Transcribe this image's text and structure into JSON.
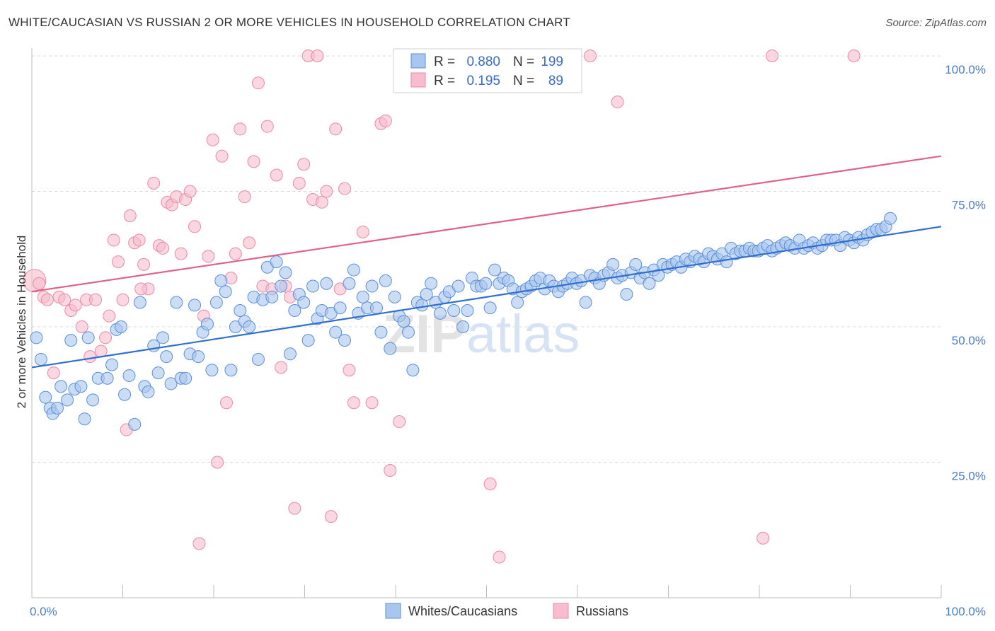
{
  "title": "WHITE/CAUCASIAN VS RUSSIAN 2 OR MORE VEHICLES IN HOUSEHOLD CORRELATION CHART",
  "source": "Source: ZipAtlas.com",
  "watermark": "ZIPatlas",
  "colors": {
    "blue_fill": "#a9c6ef",
    "blue_stroke": "#5b8fd9",
    "blue_line": "#2f6fd0",
    "pink_fill": "#f7bccd",
    "pink_stroke": "#e88aa8",
    "pink_line": "#e0628b",
    "grid": "#d8d8d8",
    "tick_text": "#4a7ccb"
  },
  "legend": {
    "r_label": "R =",
    "n_label": "N =",
    "rows": [
      {
        "series": "Whites/Caucasians",
        "r": "0.880",
        "n": "199"
      },
      {
        "series": "Russians",
        "r": "0.195",
        "n": "89"
      }
    ]
  },
  "bottom_legend": [
    "Whites/Caucasians",
    "Russians"
  ],
  "chart_data": {
    "type": "scatter",
    "title": "WHITE/CAUCASIAN VS RUSSIAN 2 OR MORE VEHICLES IN HOUSEHOLD CORRELATION CHART",
    "xlabel": "",
    "ylabel": "2 or more Vehicles in Household",
    "xlim": [
      0,
      100
    ],
    "ylim": [
      0,
      100
    ],
    "x_tick_labels": [
      "0.0%",
      "100.0%"
    ],
    "y_tick_labels": [
      "25.0%",
      "50.0%",
      "75.0%",
      "100.0%"
    ],
    "y_ticks": [
      25,
      50,
      75,
      100
    ],
    "grid": true,
    "legend_position": "top-center",
    "series": [
      {
        "name": "Whites/Caucasians",
        "trend": {
          "x": [
            0,
            100
          ],
          "y": [
            42.5,
            68.5
          ]
        },
        "points": [
          [
            0.5,
            48
          ],
          [
            1,
            44
          ],
          [
            1.5,
            37
          ],
          [
            2,
            35
          ],
          [
            2.3,
            34
          ],
          [
            2.8,
            35
          ],
          [
            3.2,
            39
          ],
          [
            3.9,
            36.5
          ],
          [
            4.3,
            47.5
          ],
          [
            4.7,
            38.5
          ],
          [
            5.4,
            39
          ],
          [
            5.8,
            33
          ],
          [
            6.2,
            48
          ],
          [
            6.7,
            36.5
          ],
          [
            7.3,
            40.5
          ],
          [
            8.3,
            40.5
          ],
          [
            8.8,
            43
          ],
          [
            9.3,
            49.5
          ],
          [
            9.8,
            50
          ],
          [
            10.2,
            37.5
          ],
          [
            10.7,
            41
          ],
          [
            11.3,
            32
          ],
          [
            11.9,
            54.5
          ],
          [
            12.4,
            39
          ],
          [
            12.8,
            38
          ],
          [
            13.4,
            46.5
          ],
          [
            13.9,
            41.5
          ],
          [
            14.4,
            48
          ],
          [
            14.8,
            44.5
          ],
          [
            15.3,
            39.5
          ],
          [
            15.9,
            54.5
          ],
          [
            16.4,
            40.5
          ],
          [
            16.9,
            40.5
          ],
          [
            17.4,
            45
          ],
          [
            17.9,
            54
          ],
          [
            18.3,
            44.5
          ],
          [
            18.8,
            49
          ],
          [
            19.3,
            50.5
          ],
          [
            19.8,
            42
          ],
          [
            20.3,
            54.5
          ],
          [
            20.8,
            58.5
          ],
          [
            21.3,
            56.5
          ],
          [
            21.9,
            42
          ],
          [
            22.4,
            50
          ],
          [
            22.9,
            53
          ],
          [
            23.4,
            51
          ],
          [
            23.9,
            50
          ],
          [
            24.4,
            55.5
          ],
          [
            24.9,
            44
          ],
          [
            25.4,
            55
          ],
          [
            25.9,
            61
          ],
          [
            26.4,
            55.5
          ],
          [
            26.9,
            62
          ],
          [
            27.4,
            57.5
          ],
          [
            27.9,
            60
          ],
          [
            28.4,
            45
          ],
          [
            28.9,
            53
          ],
          [
            29.4,
            56
          ],
          [
            29.9,
            54.5
          ],
          [
            30.4,
            47.5
          ],
          [
            30.9,
            57.5
          ],
          [
            31.4,
            51.5
          ],
          [
            31.9,
            53
          ],
          [
            32.4,
            58
          ],
          [
            32.9,
            52.5
          ],
          [
            33.4,
            49
          ],
          [
            33.9,
            53.5
          ],
          [
            34.4,
            47.5
          ],
          [
            34.9,
            58
          ],
          [
            35.4,
            60.5
          ],
          [
            35.9,
            52.5
          ],
          [
            36.4,
            55.5
          ],
          [
            36.9,
            53.5
          ],
          [
            37.4,
            57.5
          ],
          [
            37.9,
            53.5
          ],
          [
            38.4,
            49
          ],
          [
            38.9,
            58.5
          ],
          [
            39.4,
            46
          ],
          [
            39.9,
            55.5
          ],
          [
            40.4,
            52
          ],
          [
            40.9,
            51
          ],
          [
            41.4,
            49
          ],
          [
            41.9,
            42
          ],
          [
            42.4,
            54.5
          ],
          [
            42.9,
            54
          ],
          [
            43.4,
            56
          ],
          [
            43.9,
            58
          ],
          [
            44.4,
            54.5
          ],
          [
            44.9,
            52.5
          ],
          [
            45.4,
            55.5
          ],
          [
            45.9,
            56.5
          ],
          [
            46.4,
            53
          ],
          [
            46.9,
            57.5
          ],
          [
            47.4,
            50
          ],
          [
            47.9,
            53
          ],
          [
            48.4,
            59
          ],
          [
            48.9,
            57.5
          ],
          [
            49.4,
            57.5
          ],
          [
            49.9,
            58
          ],
          [
            50.4,
            53.5
          ],
          [
            50.9,
            60.5
          ],
          [
            51.4,
            58
          ],
          [
            51.9,
            59
          ],
          [
            52.4,
            58.5
          ],
          [
            52.9,
            57
          ],
          [
            53.4,
            54.5
          ],
          [
            53.9,
            56.5
          ],
          [
            54.4,
            57
          ],
          [
            54.9,
            57.5
          ],
          [
            55.4,
            58.5
          ],
          [
            55.9,
            59
          ],
          [
            56.4,
            57
          ],
          [
            56.9,
            58.5
          ],
          [
            57.4,
            57.5
          ],
          [
            57.9,
            56.5
          ],
          [
            58.4,
            57.5
          ],
          [
            58.9,
            58
          ],
          [
            59.4,
            59
          ],
          [
            59.9,
            58
          ],
          [
            60.4,
            58.5
          ],
          [
            60.9,
            54.5
          ],
          [
            61.4,
            59.5
          ],
          [
            61.9,
            59
          ],
          [
            62.4,
            58
          ],
          [
            62.9,
            59.5
          ],
          [
            63.4,
            60
          ],
          [
            63.9,
            61.5
          ],
          [
            64.4,
            59
          ],
          [
            64.9,
            59.5
          ],
          [
            65.4,
            56
          ],
          [
            65.9,
            60
          ],
          [
            66.4,
            61.5
          ],
          [
            66.9,
            59
          ],
          [
            67.4,
            60
          ],
          [
            67.9,
            58
          ],
          [
            68.4,
            60.5
          ],
          [
            68.9,
            59.5
          ],
          [
            69.4,
            61.5
          ],
          [
            69.9,
            61
          ],
          [
            70.4,
            61.5
          ],
          [
            70.9,
            62
          ],
          [
            71.4,
            61
          ],
          [
            71.9,
            62.5
          ],
          [
            72.4,
            62
          ],
          [
            72.9,
            63
          ],
          [
            73.4,
            62.5
          ],
          [
            73.9,
            62
          ],
          [
            74.4,
            63.5
          ],
          [
            74.9,
            63
          ],
          [
            75.4,
            62.5
          ],
          [
            75.9,
            63.5
          ],
          [
            76.4,
            62
          ],
          [
            76.9,
            64.5
          ],
          [
            77.4,
            63.5
          ],
          [
            77.9,
            64
          ],
          [
            78.4,
            64
          ],
          [
            78.9,
            64.5
          ],
          [
            79.4,
            64
          ],
          [
            79.9,
            64
          ],
          [
            80.4,
            64.5
          ],
          [
            80.9,
            65
          ],
          [
            81.4,
            64
          ],
          [
            81.9,
            64.5
          ],
          [
            82.4,
            65
          ],
          [
            82.9,
            65.5
          ],
          [
            83.4,
            65
          ],
          [
            83.9,
            64.5
          ],
          [
            84.4,
            66
          ],
          [
            84.9,
            64.5
          ],
          [
            85.4,
            65
          ],
          [
            85.9,
            65.5
          ],
          [
            86.4,
            64.5
          ],
          [
            86.9,
            65
          ],
          [
            87.4,
            66
          ],
          [
            87.9,
            66
          ],
          [
            88.4,
            66
          ],
          [
            88.9,
            65
          ],
          [
            89.4,
            66.5
          ],
          [
            89.9,
            66
          ],
          [
            90.4,
            65.5
          ],
          [
            90.9,
            66.5
          ],
          [
            91.4,
            66
          ],
          [
            91.9,
            67
          ],
          [
            92.4,
            67.5
          ],
          [
            92.9,
            68
          ],
          [
            93.4,
            68
          ],
          [
            93.9,
            68.5
          ],
          [
            94.4,
            70
          ]
        ]
      },
      {
        "name": "Russians",
        "trend": {
          "x": [
            0,
            100
          ],
          "y": [
            56.5,
            81.5
          ]
        },
        "points": [
          [
            0.3,
            58.5
          ],
          [
            0.8,
            58
          ],
          [
            1.3,
            55.5
          ],
          [
            1.7,
            55
          ],
          [
            2.4,
            41.5
          ],
          [
            3,
            55.5
          ],
          [
            3.6,
            55
          ],
          [
            4.3,
            53
          ],
          [
            4.8,
            54
          ],
          [
            5.5,
            50
          ],
          [
            6,
            55
          ],
          [
            6.4,
            44.5
          ],
          [
            7,
            55
          ],
          [
            7.6,
            45.5
          ],
          [
            8.1,
            48
          ],
          [
            8.5,
            52
          ],
          [
            9,
            66
          ],
          [
            9.5,
            62
          ],
          [
            10,
            55
          ],
          [
            10.4,
            31
          ],
          [
            10.8,
            70.5
          ],
          [
            11.3,
            65.5
          ],
          [
            11.8,
            66
          ],
          [
            12.3,
            61.5
          ],
          [
            12.8,
            57
          ],
          [
            13.4,
            76.5
          ],
          [
            14,
            65
          ],
          [
            14.4,
            64.5
          ],
          [
            14.9,
            73
          ],
          [
            15.4,
            72.5
          ],
          [
            15.9,
            74
          ],
          [
            16.4,
            63.5
          ],
          [
            16.9,
            73.5
          ],
          [
            17.4,
            75
          ],
          [
            17.9,
            68.5
          ],
          [
            18.4,
            10
          ],
          [
            18.9,
            52
          ],
          [
            19.4,
            63
          ],
          [
            19.9,
            84.5
          ],
          [
            20.4,
            25
          ],
          [
            20.9,
            81.5
          ],
          [
            21.4,
            36
          ],
          [
            21.9,
            59
          ],
          [
            22.4,
            63.5
          ],
          [
            22.9,
            86.5
          ],
          [
            23.4,
            74
          ],
          [
            23.9,
            65.5
          ],
          [
            24.4,
            80.5
          ],
          [
            24.9,
            95
          ],
          [
            25.4,
            57.5
          ],
          [
            25.9,
            87
          ],
          [
            26.4,
            57
          ],
          [
            26.9,
            78
          ],
          [
            27.4,
            42.5
          ],
          [
            27.9,
            57.5
          ],
          [
            28.4,
            55.5
          ],
          [
            28.9,
            16.5
          ],
          [
            29.4,
            76.5
          ],
          [
            29.9,
            80
          ],
          [
            30.4,
            100
          ],
          [
            30.9,
            73.5
          ],
          [
            31.4,
            100
          ],
          [
            31.9,
            73
          ],
          [
            32.4,
            75
          ],
          [
            32.9,
            15
          ],
          [
            33.4,
            86.5
          ],
          [
            33.9,
            57
          ],
          [
            34.4,
            75.5
          ],
          [
            34.9,
            42
          ],
          [
            35.4,
            36
          ],
          [
            36.4,
            67.5
          ],
          [
            37.4,
            36
          ],
          [
            38.4,
            87.5
          ],
          [
            38.9,
            88
          ],
          [
            39.4,
            23.5
          ],
          [
            40.4,
            32.5
          ],
          [
            50.4,
            21
          ],
          [
            51.4,
            7.5
          ],
          [
            52.4,
            100
          ],
          [
            53.4,
            100
          ],
          [
            54.4,
            100
          ],
          [
            55.4,
            100
          ],
          [
            56.4,
            100
          ],
          [
            61.4,
            100
          ],
          [
            64.4,
            91.5
          ],
          [
            80.4,
            11
          ],
          [
            81.4,
            100
          ],
          [
            90.4,
            100
          ],
          [
            12,
            57
          ]
        ]
      }
    ]
  }
}
